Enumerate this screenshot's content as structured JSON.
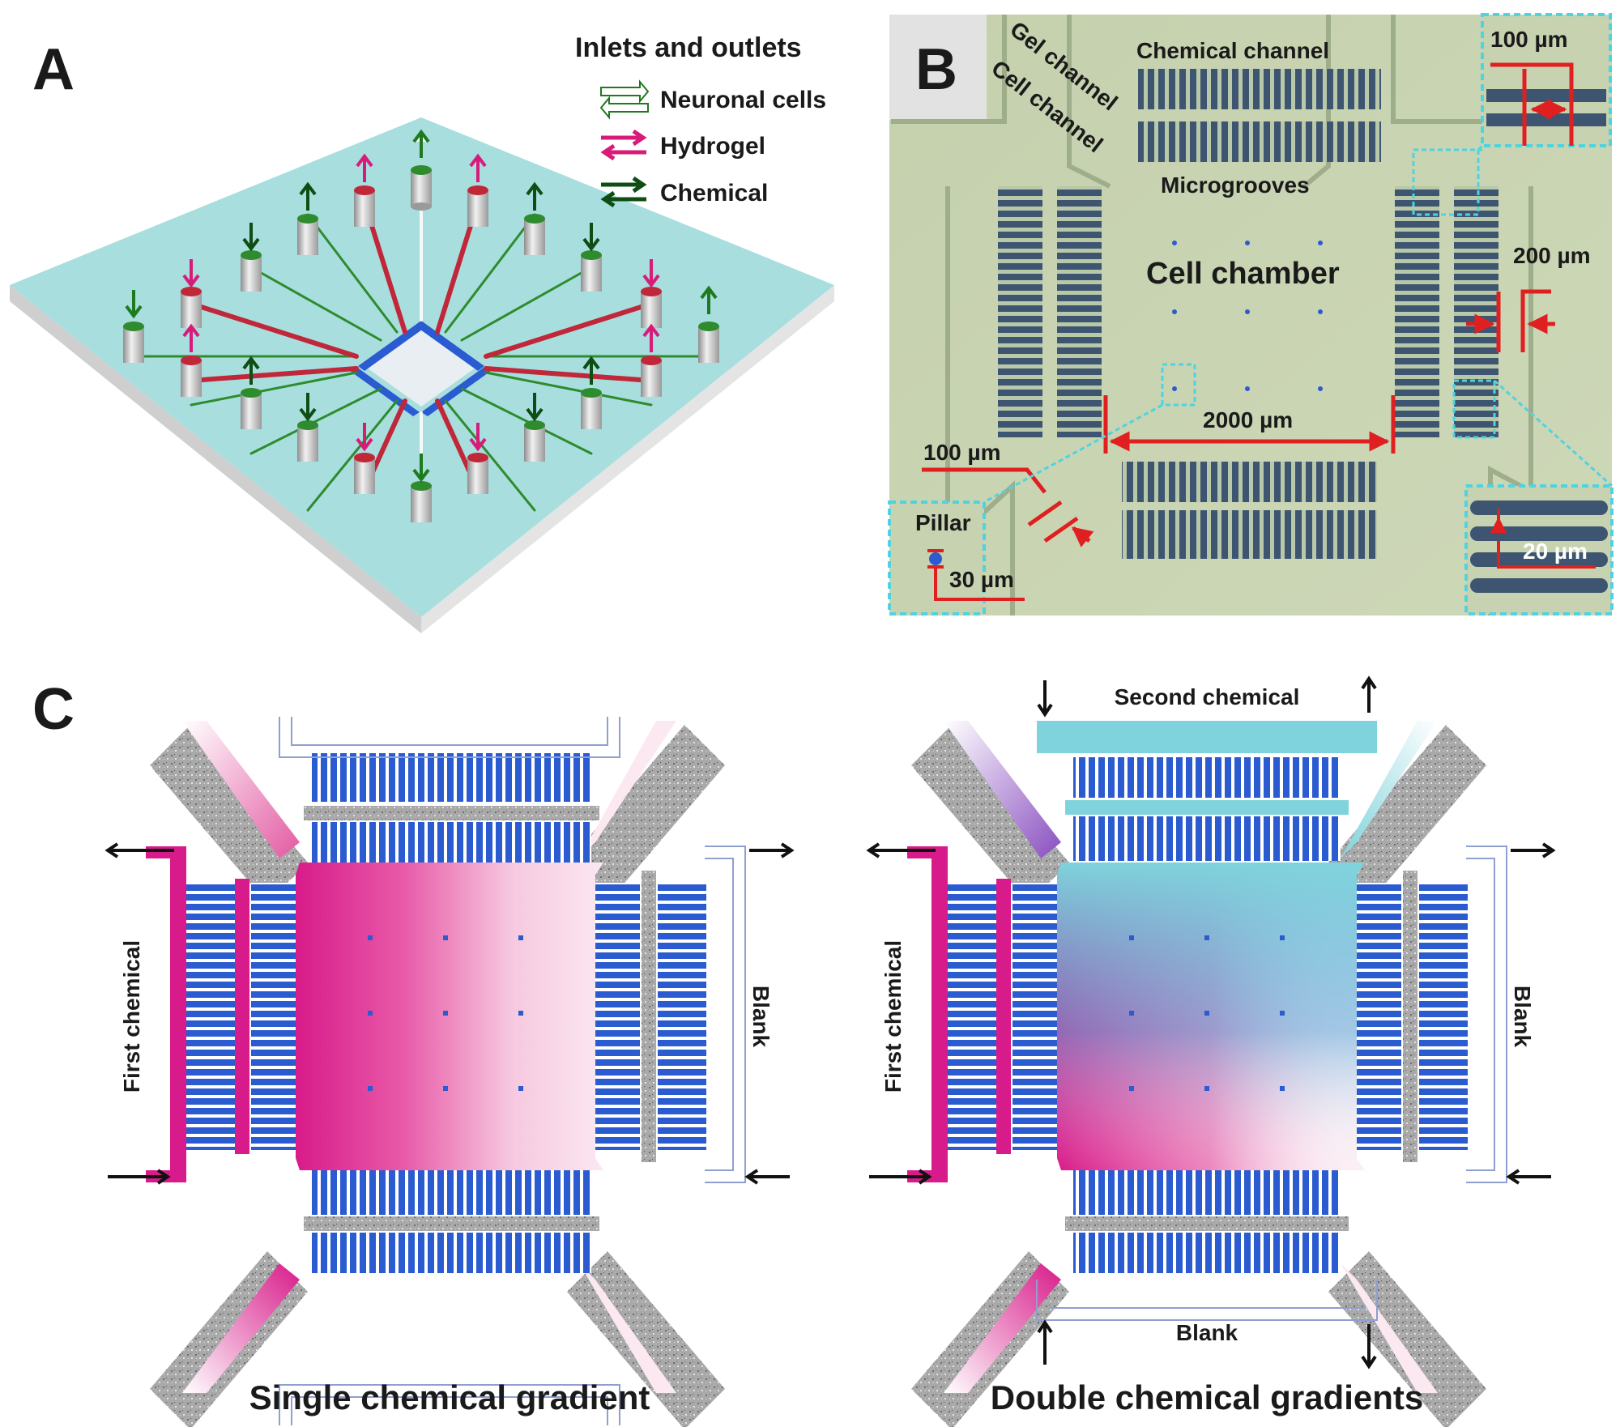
{
  "panels": {
    "a": {
      "letter": "A",
      "legend_title": "Inlets and outlets",
      "legend_items": [
        {
          "label": "Neuronal cells",
          "color": "#1e7a1e",
          "style": "hollow"
        },
        {
          "label": "Hydrogel",
          "color": "#d81b7a",
          "style": "solid"
        },
        {
          "label": "Chemical",
          "color": "#0f4d14",
          "style": "solid"
        }
      ]
    },
    "b": {
      "letter": "B",
      "labels": {
        "gel_channel": "Gel channel",
        "cell_channel": "Cell channel",
        "chemical_channel": "Chemical channel",
        "microgrooves": "Microgrooves",
        "cell_chamber": "Cell chamber",
        "pillar": "Pillar"
      },
      "dimensions": {
        "top_right": "100 µm",
        "right": "200 µm",
        "chamber_width": "2000 µm",
        "bottom_left": "100 µm",
        "pillar_size": "30 µm",
        "groove_width": "20 µm"
      }
    },
    "c": {
      "letter": "C",
      "left": {
        "caption": "Single chemical gradient",
        "left_channel": "First chemical",
        "right_channel": "Blank"
      },
      "right": {
        "caption": "Double chemical gradients",
        "left_channel": "First chemical",
        "right_channel": "Blank",
        "top_channel": "Second chemical",
        "bottom_channel": "Blank"
      }
    }
  },
  "colors": {
    "substrate": "#a8dede",
    "hydrogel": "#d81b7a",
    "chemical": "#0f4d14",
    "neuronal": "#1e7a1e",
    "groove": "#2b5bd0",
    "second_chemical": "#7fd3dc",
    "dimension_red": "#e02020",
    "inset_cyan": "#4fd3e0"
  }
}
